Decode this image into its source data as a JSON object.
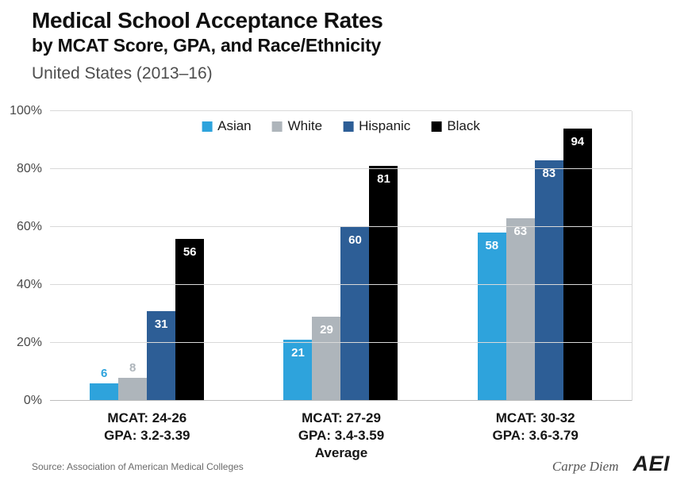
{
  "header": {
    "title_line1": "Medical School Acceptance Rates",
    "title_line2": "by MCAT Score, GPA, and Race/Ethnicity",
    "caption": "United States (2013–16)"
  },
  "footer": {
    "source": "Source: Association of American Medical Colleges",
    "credit": "Carpe Diem",
    "logo": "AEI"
  },
  "chart_data": {
    "type": "bar",
    "title": "Medical School Acceptance Rates by MCAT Score, GPA, and Race/Ethnicity",
    "subtitle": "United States (2013–16)",
    "categories": [
      [
        "MCAT: 24-26",
        "GPA: 3.2-3.39"
      ],
      [
        "MCAT: 27-29",
        "GPA: 3.4-3.59",
        "Average"
      ],
      [
        "MCAT: 30-32",
        "GPA: 3.6-3.79"
      ]
    ],
    "series": [
      {
        "name": "Asian",
        "color": "#2ea3dc",
        "values": [
          6,
          21,
          58
        ]
      },
      {
        "name": "White",
        "color": "#aeb5bb",
        "values": [
          8,
          29,
          63
        ]
      },
      {
        "name": "Hispanic",
        "color": "#2d5e96",
        "values": [
          31,
          60,
          83
        ]
      },
      {
        "name": "Black",
        "color": "#000000",
        "values": [
          56,
          81,
          94
        ]
      }
    ],
    "ylim": [
      0,
      100
    ],
    "yticks": [
      "0%",
      "20%",
      "40%",
      "60%",
      "80%",
      "100%"
    ],
    "grid": true,
    "legend_position": "top-center"
  }
}
